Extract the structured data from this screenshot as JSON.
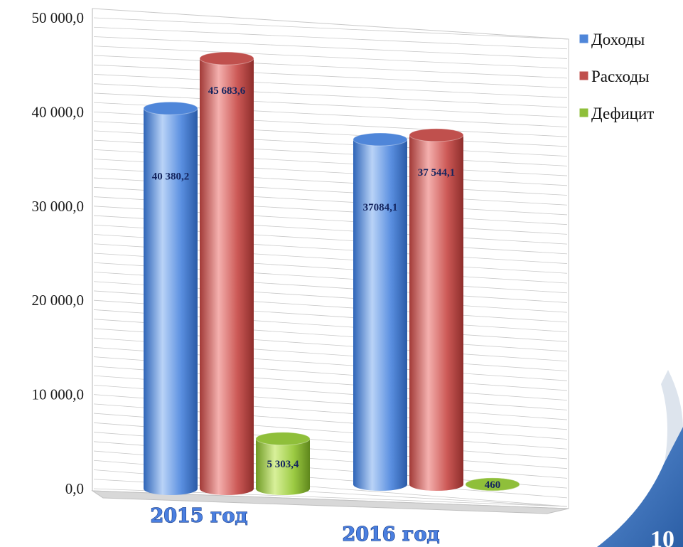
{
  "chart_data": {
    "type": "bar",
    "categories": [
      "2015 год",
      "2016 год"
    ],
    "series": [
      {
        "name": "Доходы",
        "values": [
          40380.2,
          37084.1
        ],
        "labels": [
          "40 380,2",
          "37084,1"
        ],
        "color": "#4f86d9"
      },
      {
        "name": "Расходы",
        "values": [
          45683.6,
          37544.1
        ],
        "labels": [
          "45 683,6",
          "37 544,1"
        ],
        "color": "#c0504d"
      },
      {
        "name": "Дефицит",
        "values": [
          5303.4,
          460
        ],
        "labels": [
          "5 303,4",
          "460"
        ],
        "color": "#8fbf3a"
      }
    ],
    "ylim": [
      0,
      50000
    ],
    "yticks": [
      0,
      10000,
      20000,
      30000,
      40000,
      50000
    ],
    "ytick_labels": [
      "0,0",
      "10 000,0",
      "20 000,0",
      "30 000,0",
      "40 000,0",
      "50 000,0"
    ],
    "grid": true,
    "legend_position": "right",
    "style": "3d-cylinder"
  },
  "page_number": "10",
  "colors": {
    "corner_accent": "#3f74b8"
  }
}
